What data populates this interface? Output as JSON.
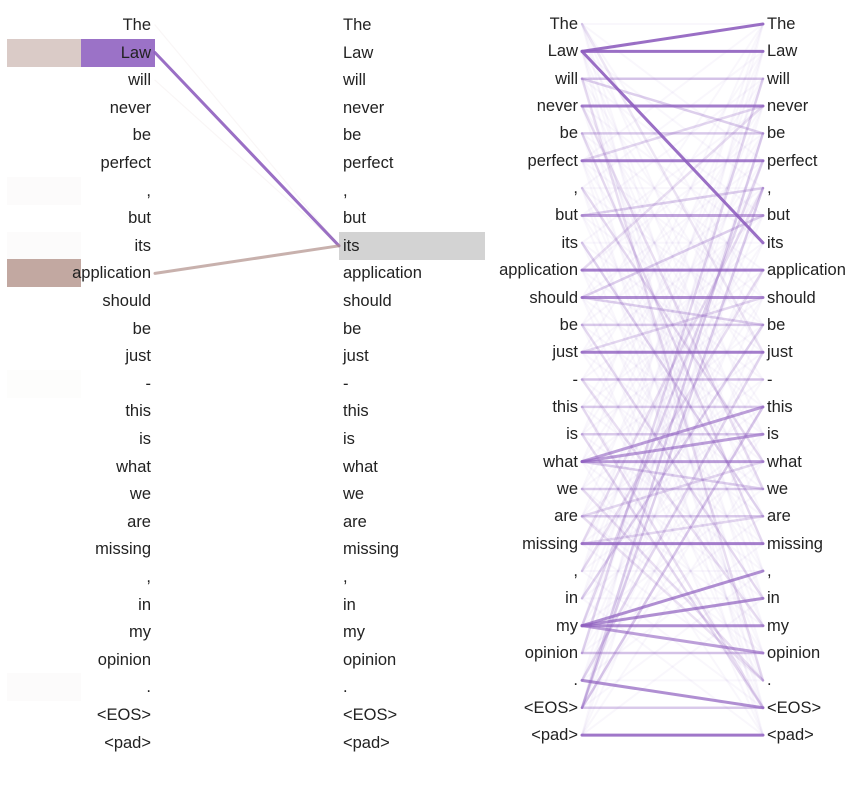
{
  "tokens": [
    "The",
    "Law",
    "will",
    "never",
    "be",
    "perfect",
    ",",
    "but",
    "its",
    "application",
    "should",
    "be",
    "just",
    "-",
    "this",
    "is",
    "what",
    "we",
    "are",
    "missing",
    ",",
    "in",
    "my",
    "opinion",
    ".",
    "<EOS>",
    "<pad>"
  ],
  "colors": {
    "attention_line": "#8f5fbf",
    "selected_left": "#9b72c7",
    "left_weight_bg": "#b89a92",
    "query_highlight": "#d3d3d3",
    "line_brown": "#b0908a"
  },
  "panel_a": {
    "selected_token_index": 1,
    "query_token_index": 8,
    "left_weights": [
      0.0,
      0.45,
      0.0,
      0.0,
      0.0,
      0.0,
      0.03,
      0.0,
      0.03,
      0.75,
      0.0,
      0.0,
      0.0,
      0.02,
      0.0,
      0.0,
      0.0,
      0.0,
      0.0,
      0.0,
      0.0,
      0.0,
      0.0,
      0.0,
      0.03,
      0.0,
      0.0
    ],
    "edges": [
      {
        "from": 1,
        "to": 8,
        "weight": 0.9
      },
      {
        "from": 9,
        "to": 8,
        "weight": 0.7
      },
      {
        "from": 0,
        "to": 8,
        "weight": 0.03
      },
      {
        "from": 2,
        "to": 8,
        "weight": 0.03
      }
    ]
  },
  "panel_b": {
    "strong_edges": [
      {
        "from": 1,
        "to": 0,
        "weight": 0.9
      },
      {
        "from": 1,
        "to": 1,
        "weight": 0.9
      },
      {
        "from": 1,
        "to": 8,
        "weight": 0.9
      },
      {
        "from": 3,
        "to": 3,
        "weight": 0.8
      },
      {
        "from": 5,
        "to": 5,
        "weight": 0.8
      },
      {
        "from": 7,
        "to": 7,
        "weight": 0.55
      },
      {
        "from": 9,
        "to": 9,
        "weight": 0.8
      },
      {
        "from": 10,
        "to": 10,
        "weight": 0.7
      },
      {
        "from": 12,
        "to": 12,
        "weight": 0.8
      },
      {
        "from": 16,
        "to": 14,
        "weight": 0.6
      },
      {
        "from": 16,
        "to": 15,
        "weight": 0.6
      },
      {
        "from": 16,
        "to": 16,
        "weight": 0.6
      },
      {
        "from": 19,
        "to": 19,
        "weight": 0.8
      },
      {
        "from": 22,
        "to": 20,
        "weight": 0.7
      },
      {
        "from": 22,
        "to": 21,
        "weight": 0.7
      },
      {
        "from": 22,
        "to": 22,
        "weight": 0.7
      },
      {
        "from": 22,
        "to": 23,
        "weight": 0.6
      },
      {
        "from": 24,
        "to": 25,
        "weight": 0.7
      },
      {
        "from": 26,
        "to": 26,
        "weight": 0.85
      },
      {
        "from": 2,
        "to": 2,
        "weight": 0.35
      },
      {
        "from": 4,
        "to": 4,
        "weight": 0.3
      },
      {
        "from": 11,
        "to": 11,
        "weight": 0.3
      },
      {
        "from": 13,
        "to": 13,
        "weight": 0.35
      },
      {
        "from": 14,
        "to": 14,
        "weight": 0.3
      },
      {
        "from": 15,
        "to": 15,
        "weight": 0.3
      },
      {
        "from": 17,
        "to": 17,
        "weight": 0.3
      },
      {
        "from": 18,
        "to": 18,
        "weight": 0.3
      },
      {
        "from": 23,
        "to": 23,
        "weight": 0.35
      },
      {
        "from": 25,
        "to": 25,
        "weight": 0.3
      },
      {
        "from": 2,
        "to": 4,
        "weight": 0.3
      },
      {
        "from": 5,
        "to": 3,
        "weight": 0.25
      },
      {
        "from": 7,
        "to": 6,
        "weight": 0.3
      },
      {
        "from": 10,
        "to": 7,
        "weight": 0.3
      },
      {
        "from": 10,
        "to": 11,
        "weight": 0.3
      },
      {
        "from": 12,
        "to": 10,
        "weight": 0.25
      },
      {
        "from": 16,
        "to": 17,
        "weight": 0.3
      },
      {
        "from": 18,
        "to": 16,
        "weight": 0.25
      },
      {
        "from": 19,
        "to": 18,
        "weight": 0.25
      },
      {
        "from": 25,
        "to": 4,
        "weight": 0.3
      },
      {
        "from": 25,
        "to": 6,
        "weight": 0.3
      },
      {
        "from": 25,
        "to": 14,
        "weight": 0.35
      },
      {
        "from": 22,
        "to": 5,
        "weight": 0.25
      },
      {
        "from": 24,
        "to": 12,
        "weight": 0.25
      },
      {
        "from": 23,
        "to": 2,
        "weight": 0.25
      },
      {
        "from": 21,
        "to": 11,
        "weight": 0.25
      },
      {
        "from": 8,
        "to": 18,
        "weight": 0.25
      },
      {
        "from": 6,
        "to": 16,
        "weight": 0.2
      },
      {
        "from": 3,
        "to": 17,
        "weight": 0.2
      },
      {
        "from": 4,
        "to": 19,
        "weight": 0.2
      },
      {
        "from": 2,
        "to": 24,
        "weight": 0.2
      },
      {
        "from": 9,
        "to": 3,
        "weight": 0.2
      },
      {
        "from": 13,
        "to": 22,
        "weight": 0.2
      },
      {
        "from": 14,
        "to": 25,
        "weight": 0.2
      },
      {
        "from": 20,
        "to": 9,
        "weight": 0.2
      },
      {
        "from": 17,
        "to": 24,
        "weight": 0.2
      },
      {
        "from": 11,
        "to": 21,
        "weight": 0.2
      },
      {
        "from": 15,
        "to": 25,
        "weight": 0.2
      },
      {
        "from": 0,
        "to": 12,
        "weight": 0.15
      },
      {
        "from": 19,
        "to": 6,
        "weight": 0.2
      },
      {
        "from": 18,
        "to": 24,
        "weight": 0.18
      }
    ]
  }
}
